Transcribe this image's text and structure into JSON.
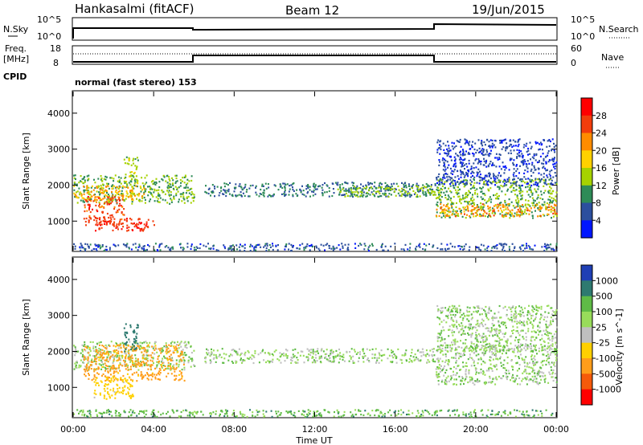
{
  "header": {
    "station": "Hankasalmi (fitACF)",
    "beam": "Beam 12",
    "date": "19/Jun/2015"
  },
  "strips": {
    "nsky_label": "N.Sky",
    "nsky_ticks": [
      "10^5",
      "10^0"
    ],
    "nsearch_label": "N.Search",
    "nsearch_ticks": [
      "10^5",
      "10^0"
    ],
    "freq_label_1": "Freq.",
    "freq_label_2": "[MHz]",
    "freq_ticks": [
      "18",
      "8"
    ],
    "nave_label": "Nave",
    "nave_ticks": [
      "60",
      "0"
    ],
    "cpid_label": "CPID",
    "cpid_text": "normal (fast stereo) 153"
  },
  "colorbars": {
    "power": {
      "title": "Power [dB]",
      "labels": [
        "28",
        "24",
        "20",
        "16",
        "12",
        "8",
        "4"
      ],
      "colors": [
        "#ff0000",
        "#f23d0c",
        "#ff8c00",
        "#ffd100",
        "#a6d200",
        "#2e8b57",
        "#2c4f9e",
        "#0016ff"
      ]
    },
    "velocity": {
      "title": "Velocity [m s^-1]",
      "labels": [
        "1000",
        "500",
        "100",
        "25",
        "-25",
        "-100",
        "-500",
        "-1000"
      ],
      "colors": [
        "#1f3fb5",
        "#2e7a70",
        "#5fbb46",
        "#98dc5a",
        "#bfbfbf",
        "#ffd000",
        "#ff9d1a",
        "#f55a0a",
        "#ff0000"
      ]
    }
  },
  "chart_data": [
    {
      "type": "heatmap",
      "name": "Power",
      "xlabel": "Time UT",
      "ylabel": "Slant Range [km]",
      "x_ticks": [
        "00:00",
        "04:00",
        "08:00",
        "12:00",
        "16:00",
        "20:00",
        "00:00"
      ],
      "x_range_hours": [
        0,
        24
      ],
      "y_ticks": [
        1000,
        2000,
        3000,
        4000
      ],
      "y_range_km": [
        180,
        4600
      ],
      "colorbar_range_db": [
        0,
        32
      ],
      "regions": [
        {
          "t": [
            0,
            6
          ],
          "r": [
            1500,
            2300
          ],
          "value_db": 12
        },
        {
          "t": [
            0,
            3.5
          ],
          "r": [
            1600,
            2000
          ],
          "value_db": 20
        },
        {
          "t": [
            0.5,
            2.5
          ],
          "r": [
            900,
            1700
          ],
          "value_db": 26
        },
        {
          "t": [
            1,
            4
          ],
          "r": [
            750,
            1100
          ],
          "value_db": 27
        },
        {
          "t": [
            2.5,
            3.2
          ],
          "r": [
            2000,
            2800
          ],
          "value_db": 14
        },
        {
          "t": [
            6.5,
            18
          ],
          "r": [
            1700,
            2100
          ],
          "value_db": 8
        },
        {
          "t": [
            13,
            18
          ],
          "r": [
            1700,
            2000
          ],
          "value_db": 13
        },
        {
          "t": [
            18,
            24
          ],
          "r": [
            1100,
            2200
          ],
          "value_db": 12
        },
        {
          "t": [
            18,
            24
          ],
          "r": [
            1150,
            1500
          ],
          "value_db": 22
        },
        {
          "t": [
            18,
            24
          ],
          "r": [
            2000,
            3300
          ],
          "value_db": 5
        },
        {
          "t": [
            0,
            24
          ],
          "r": [
            200,
            400
          ],
          "value_db": 6
        }
      ]
    },
    {
      "type": "heatmap",
      "name": "Velocity",
      "xlabel": "Time UT",
      "ylabel": "Slant Range [km]",
      "x_ticks": [
        "00:00",
        "04:00",
        "08:00",
        "12:00",
        "16:00",
        "20:00",
        "00:00"
      ],
      "x_range_hours": [
        0,
        24
      ],
      "y_ticks": [
        1000,
        2000,
        3000,
        4000
      ],
      "y_range_km": [
        180,
        4600
      ],
      "colorbar_range_ms": [
        -1000,
        1000
      ],
      "regions": [
        {
          "t": [
            0,
            6
          ],
          "r": [
            1500,
            2300
          ],
          "value_ms": 0
        },
        {
          "t": [
            0.5,
            5.5
          ],
          "r": [
            1200,
            2200
          ],
          "value_ms": -300
        },
        {
          "t": [
            1,
            3
          ],
          "r": [
            700,
            1300
          ],
          "value_ms": -150
        },
        {
          "t": [
            2.5,
            3.2
          ],
          "r": [
            2000,
            2800
          ],
          "value_ms": 200
        },
        {
          "t": [
            6.5,
            18
          ],
          "r": [
            1700,
            2100
          ],
          "value_ms": 0
        },
        {
          "t": [
            18,
            24
          ],
          "r": [
            1100,
            2200
          ],
          "value_ms": 0
        },
        {
          "t": [
            18,
            24
          ],
          "r": [
            2000,
            3300
          ],
          "value_ms": 0
        },
        {
          "t": [
            0,
            24
          ],
          "r": [
            200,
            400
          ],
          "value_ms": 60
        }
      ]
    }
  ]
}
